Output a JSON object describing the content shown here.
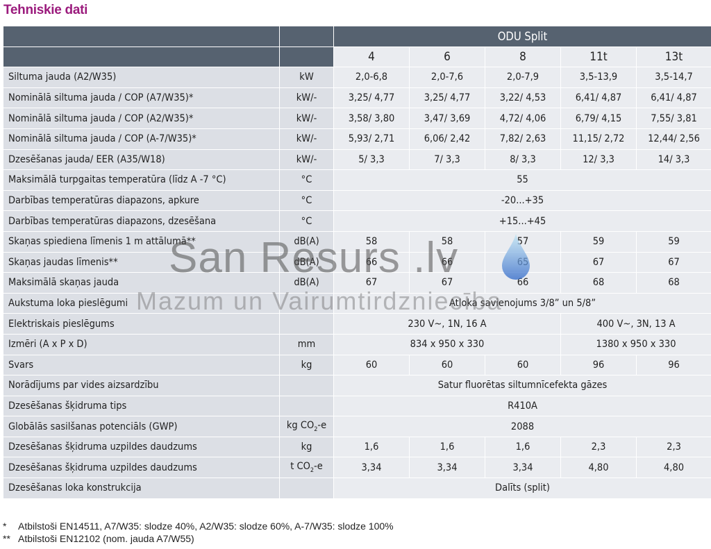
{
  "title": "Tehniskie dati",
  "header": {
    "group": "ODU Split",
    "models": [
      "4",
      "6",
      "8",
      "11t",
      "13t"
    ]
  },
  "rows": [
    {
      "label": "Siltuma jauda (A2/W35)",
      "unit": "kW",
      "values": [
        "2,0-6,8",
        "2,0-7,6",
        "2,0-7,9",
        "3,5-13,9",
        "3,5-14,7"
      ]
    },
    {
      "label": "Nominālā siltuma jauda / COP (A7/W35)*",
      "unit": "kW/-",
      "values": [
        "3,25/ 4,77",
        "3,25/ 4,77",
        "3,22/ 4,53",
        "6,41/ 4,87",
        "6,41/ 4,87"
      ]
    },
    {
      "label": "Nominālā siltuma jauda / COP (A2/W35)*",
      "unit": "kW/-",
      "values": [
        "3,58/ 3,80",
        "3,47/ 3,69",
        "4,72/ 4,06",
        "6,79/ 4,15",
        "7,55/ 3,81"
      ]
    },
    {
      "label": "Nominālā siltuma jauda / COP (A-7/W35)*",
      "unit": "kW/-",
      "values": [
        "5,93/ 2,71",
        "6,06/ 2,42",
        "7,82/ 2,63",
        "11,15/ 2,72",
        "12,44/ 2,56"
      ]
    },
    {
      "label": "Dzesēšanas jauda/ EER (A35/W18)",
      "unit": "kW/-",
      "values": [
        "5/ 3,3",
        "7/ 3,3",
        "8/ 3,3",
        "12/ 3,3",
        "14/ 3,3"
      ]
    },
    {
      "label": "Maksimālā turpgaitas temperatūra (līdz A -7 °C)",
      "unit": "°C",
      "span": "55"
    },
    {
      "label": "Darbības temperatūras diapazons, apkure",
      "unit": "°C",
      "span": "-20...+35"
    },
    {
      "label": "Darbības temperatūras diapazons, dzesēšana",
      "unit": "°C",
      "span": "+15...+45"
    },
    {
      "label": "Skaņas spiediena līmenis 1 m attālumā**",
      "unit": "dB(A)",
      "values": [
        "58",
        "58",
        "57",
        "59",
        "59"
      ]
    },
    {
      "label": "Skaņas jaudas līmenis**",
      "unit": "dB(A)",
      "values": [
        "66",
        "66",
        "65",
        "67",
        "67"
      ]
    },
    {
      "label": "Maksimālā skaņas jauda",
      "unit": "dB(A)",
      "values": [
        "67",
        "67",
        "66",
        "68",
        "68"
      ]
    },
    {
      "label": "Aukstuma loka pieslēgumi",
      "unit": "",
      "span": "Atloka savienojums 3/8” un 5/8”"
    },
    {
      "label": "Elektriskais pieslēgums",
      "unit": "",
      "split": [
        "230 V~, 1N, 16 A",
        "400 V~, 3N, 13 A"
      ]
    },
    {
      "label": "Izmēri (A x P x D)",
      "unit": "mm",
      "split": [
        "834 x 950 x 330",
        "1380 x 950 x 330"
      ]
    },
    {
      "label": "Svars",
      "unit": "kg",
      "values": [
        "60",
        "60",
        "60",
        "96",
        "96"
      ]
    },
    {
      "label": "Norādījums par vides aizsardzību",
      "unit": "",
      "span": "Satur fluorētas siltumnīcefekta gāzes"
    },
    {
      "label": "Dzesēšanas šķidruma tips",
      "unit": "",
      "span": "R410A"
    },
    {
      "label": "Globālās sasilšanas potenciāls (GWP)",
      "unit": "kg CO2-e",
      "span": "2088"
    },
    {
      "label": "Dzesēšanas šķidruma uzpildes daudzums",
      "unit": "kg",
      "values": [
        "1,6",
        "1,6",
        "1,6",
        "2,3",
        "2,3"
      ]
    },
    {
      "label": "Dzesēšanas šķidruma uzpildes daudzums",
      "unit": "t CO2-e",
      "values": [
        "3,34",
        "3,34",
        "3,34",
        "4,80",
        "4,80"
      ]
    },
    {
      "label": "Dzesēšanas loka konstrukcija",
      "unit": "",
      "span": "Dalīts (split)"
    }
  ],
  "footnotes": [
    {
      "mark": "*",
      "text": "Atbilstoši EN14511, A7/W35: slodze 40%, A2/W35: slodze 60%, A-7/W35: slodze 100%"
    },
    {
      "mark": "**",
      "text": "Atbilstoši EN12102 (nom. jauda A7/W55)"
    }
  ],
  "watermark": {
    "line1": "San Resurs .lv",
    "line2": "Mazum un Vairumtirdzniecība"
  }
}
